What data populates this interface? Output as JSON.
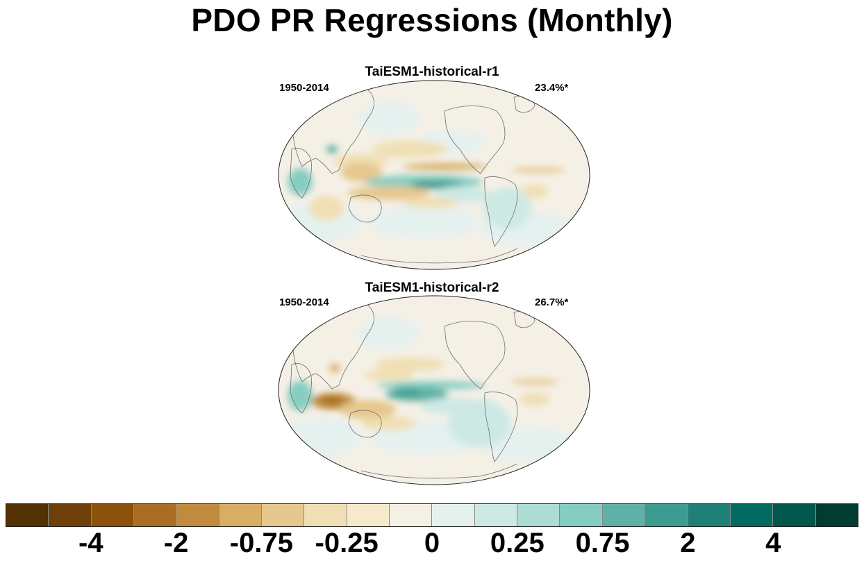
{
  "title": "PDO PR Regressions (Monthly)",
  "panels": [
    {
      "title": "TaiESM1-historical-r1",
      "period": "1950-2014",
      "variance": "23.4%*"
    },
    {
      "title": "TaiESM1-historical-r2",
      "period": "1950-2014",
      "variance": "26.7%*"
    }
  ],
  "colorbar": {
    "colors": [
      "#543005",
      "#6f3f0a",
      "#8c510a",
      "#a96d24",
      "#c18a3d",
      "#d7ae63",
      "#e6c88e",
      "#f0dfb4",
      "#f5ebcc",
      "#f5f0e6",
      "#e5f1ef",
      "#cde9e4",
      "#acdcd4",
      "#86cdc1",
      "#5eb1a6",
      "#3d9b90",
      "#1d8178",
      "#016b61",
      "#01574c",
      "#003c30"
    ],
    "labels": [
      "-4",
      "-2",
      "-0.75",
      "-0.25",
      "0",
      "0.25",
      "0.75",
      "2",
      "4"
    ]
  }
}
